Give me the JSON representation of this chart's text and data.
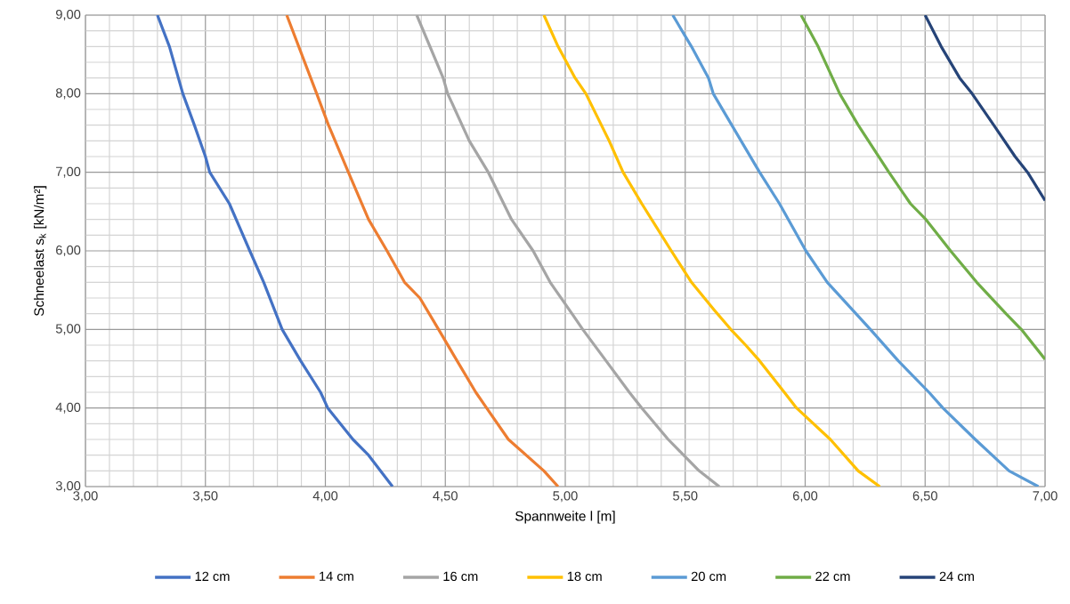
{
  "chart_data": {
    "type": "line",
    "xlabel": "Spannweite l [m]",
    "ylabel": "Schneelast s$_{k}$ [kN/m²]",
    "xlim": [
      3,
      7
    ],
    "ylim": [
      3,
      9
    ],
    "xticks": [
      {
        "value": 3,
        "label": "3,00"
      },
      {
        "value": 3.5,
        "label": "3,50"
      },
      {
        "value": 4,
        "label": "4,00"
      },
      {
        "value": 4.5,
        "label": "4,50"
      },
      {
        "value": 5,
        "label": "5,00"
      },
      {
        "value": 5.5,
        "label": "5,50"
      },
      {
        "value": 6,
        "label": "6,00"
      },
      {
        "value": 6.5,
        "label": "6,50"
      },
      {
        "value": 7,
        "label": "7,00"
      }
    ],
    "yticks": [
      {
        "value": 3,
        "label": "3,00"
      },
      {
        "value": 4,
        "label": "4,00"
      },
      {
        "value": 5,
        "label": "5,00"
      },
      {
        "value": 6,
        "label": "6,00"
      },
      {
        "value": 7,
        "label": "7,00"
      },
      {
        "value": 8,
        "label": "8,00"
      },
      {
        "value": 9,
        "label": "9,00"
      }
    ],
    "grid": true,
    "legend": "bottom",
    "marker": "none",
    "line_style": "solid",
    "series": [
      {
        "name": "12 cm",
        "color": "#4472c4",
        "x": [
          3.3,
          3.35,
          3.406,
          3.454,
          3.5,
          3.518,
          3.6,
          3.685,
          3.743,
          3.82,
          3.897,
          3.98,
          4.01,
          4.115,
          4.18,
          4.28
        ],
        "values": [
          9,
          8.6,
          8,
          7.6,
          7.2,
          7,
          6.6,
          6,
          5.6,
          5,
          4.6,
          4.2,
          4,
          3.6,
          3.4,
          3
        ]
      },
      {
        "name": "14 cm",
        "color": "#ed7d31",
        "x": [
          3.839,
          3.964,
          4.013,
          4.096,
          4.18,
          4.257,
          4.33,
          4.394,
          4.472,
          4.549,
          4.627,
          4.672,
          4.763,
          4.911,
          4.97
        ],
        "values": [
          9,
          8,
          7.6,
          7,
          6.4,
          6,
          5.6,
          5.4,
          5,
          4.6,
          4.2,
          4,
          3.6,
          3.2,
          3
        ]
      },
      {
        "name": "16 cm",
        "color": "#a5a5a5",
        "x": [
          4.381,
          4.491,
          4.51,
          4.6,
          4.679,
          4.776,
          4.866,
          4.937,
          5.028,
          5.073,
          5.17,
          5.267,
          5.319,
          5.429,
          5.558,
          5.642
        ],
        "values": [
          9,
          8.2,
          8,
          7.4,
          7,
          6.4,
          6,
          5.6,
          5.2,
          5,
          4.6,
          4.2,
          4,
          3.6,
          3.2,
          3
        ]
      },
      {
        "name": "18 cm",
        "color": "#ffc000",
        "x": [
          4.911,
          4.97,
          5.041,
          5.086,
          5.183,
          5.241,
          5.319,
          5.442,
          5.526,
          5.62,
          5.69,
          5.752,
          5.81,
          5.913,
          5.964,
          6.105,
          6.221,
          6.311
        ],
        "values": [
          9,
          8.6,
          8.2,
          8,
          7.4,
          7,
          6.6,
          6,
          5.6,
          5.25,
          5,
          4.8,
          4.6,
          4.2,
          4,
          3.6,
          3.2,
          3
        ]
      },
      {
        "name": "20 cm",
        "color": "#5b9bd5",
        "x": [
          5.448,
          5.526,
          5.597,
          5.617,
          5.694,
          5.81,
          5.893,
          6.003,
          6.092,
          6.272,
          6.388,
          6.516,
          6.574,
          6.709,
          6.85,
          6.972
        ],
        "values": [
          9,
          8.6,
          8.2,
          8,
          7.6,
          7,
          6.6,
          6,
          5.6,
          5,
          4.6,
          4.2,
          4,
          3.6,
          3.2,
          3
        ]
      },
      {
        "name": "22 cm",
        "color": "#70ad47",
        "x": [
          5.983,
          6.054,
          6.144,
          6.221,
          6.349,
          6.439,
          6.503,
          6.606,
          6.715,
          6.837,
          6.901,
          7
        ],
        "values": [
          9,
          8.6,
          8,
          7.6,
          7,
          6.6,
          6.4,
          6,
          5.6,
          5.2,
          5,
          4.62
        ]
      },
      {
        "name": "24 cm",
        "color": "#264478",
        "x": [
          6.5,
          6.567,
          6.644,
          6.696,
          6.786,
          6.875,
          6.927,
          7
        ],
        "values": [
          9,
          8.6,
          8.2,
          8,
          7.6,
          7.2,
          7,
          6.64
        ]
      }
    ]
  }
}
